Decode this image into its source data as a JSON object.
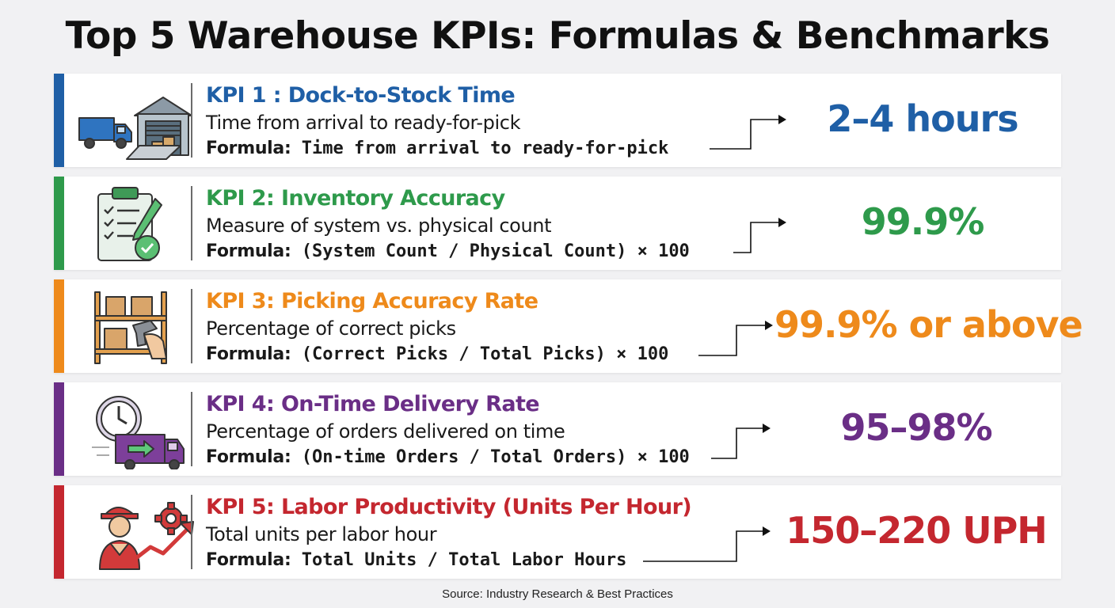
{
  "title": "Top 5 Warehouse KPIs: Formulas & Benchmarks",
  "kpis": [
    {
      "name": "KPI 1 : Dock-to-Stock Time",
      "description": "Time from arrival to ready-for-pick",
      "formula_label": "Formula:",
      "formula": "Time from arrival to ready-for-pick",
      "benchmark": "2–4 hours",
      "color": "#1f5fa6",
      "icon": "truck-warehouse-icon"
    },
    {
      "name": "KPI 2: Inventory Accuracy",
      "description": "Measure of system vs. physical count",
      "formula_label": "Formula:",
      "formula": "(System Count / Physical Count) × 100",
      "benchmark": "99.9%",
      "color": "#2e9a4b",
      "icon": "clipboard-check-icon"
    },
    {
      "name": "KPI 3: Picking Accuracy Rate",
      "description": "Percentage of correct picks",
      "formula_label": "Formula:",
      "formula": "(Correct Picks / Total Picks) × 100",
      "benchmark": "99.9% or above",
      "color": "#ee8a1b",
      "icon": "shelf-scanner-icon"
    },
    {
      "name": "KPI 4: On-Time Delivery Rate",
      "description": "Percentage of orders delivered on time",
      "formula_label": "Formula:",
      "formula": "(On-time Orders / Total Orders) × 100",
      "benchmark": "95–98%",
      "color": "#6a2e86",
      "icon": "clock-delivery-truck-icon"
    },
    {
      "name": "KPI 5: Labor Productivity (Units Per Hour)",
      "description": "Total units per labor hour",
      "formula_label": "Formula:",
      "formula": "Total Units / Total Labor Hours",
      "benchmark": "150–220 UPH",
      "color": "#c4272f",
      "icon": "worker-growth-icon"
    }
  ],
  "source": "Source: Industry Research & Best Practices"
}
